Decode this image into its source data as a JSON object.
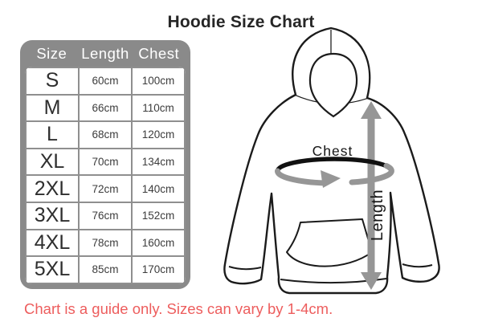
{
  "title": "Hoodie Size Chart",
  "table": {
    "headers": [
      "Size",
      "Length",
      "Chest"
    ],
    "rows": [
      {
        "size": "S",
        "length": "60cm",
        "chest": "100cm"
      },
      {
        "size": "M",
        "length": "66cm",
        "chest": "110cm"
      },
      {
        "size": "L",
        "length": "68cm",
        "chest": "120cm"
      },
      {
        "size": "XL",
        "length": "70cm",
        "chest": "134cm"
      },
      {
        "size": "2XL",
        "length": "72cm",
        "chest": "140cm"
      },
      {
        "size": "3XL",
        "length": "76cm",
        "chest": "152cm"
      },
      {
        "size": "4XL",
        "length": "78cm",
        "chest": "160cm"
      },
      {
        "size": "5XL",
        "length": "85cm",
        "chest": "170cm"
      }
    ]
  },
  "diagram": {
    "chest_label": "Chest",
    "length_label": "Length"
  },
  "footnote": "Chart is a guide only. Sizes can vary by 1-4cm.",
  "colors": {
    "table_gray": "#8a8a8a",
    "cell_border_gray": "#8f8f8f",
    "arrow_gray": "#969696",
    "outline_black": "#1b1b1b",
    "note_red": "#ed5d5d",
    "header_text": "#ffffff"
  }
}
